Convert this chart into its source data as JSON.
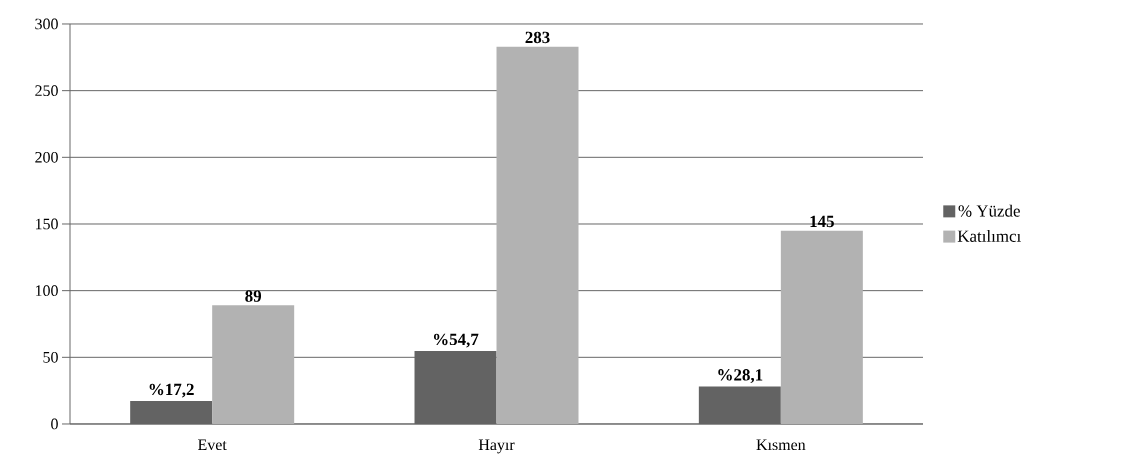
{
  "chart_data": {
    "type": "bar",
    "categories": [
      "Evet",
      "Hayır",
      "Kısmen"
    ],
    "series": [
      {
        "name": "% Yüzde",
        "color": "#636363",
        "values": [
          17.2,
          54.7,
          28.1
        ],
        "value_labels": [
          "%17,2",
          "%54,7",
          "%28,1"
        ]
      },
      {
        "name": "Katılımcı",
        "color": "#b2b2b2",
        "values": [
          89,
          283,
          145
        ],
        "value_labels": [
          "89",
          "283",
          "145"
        ]
      }
    ],
    "ylim": [
      0,
      300
    ],
    "yticks": [
      0,
      50,
      100,
      150,
      200,
      250,
      300
    ],
    "grid": "y",
    "legend": "right"
  }
}
